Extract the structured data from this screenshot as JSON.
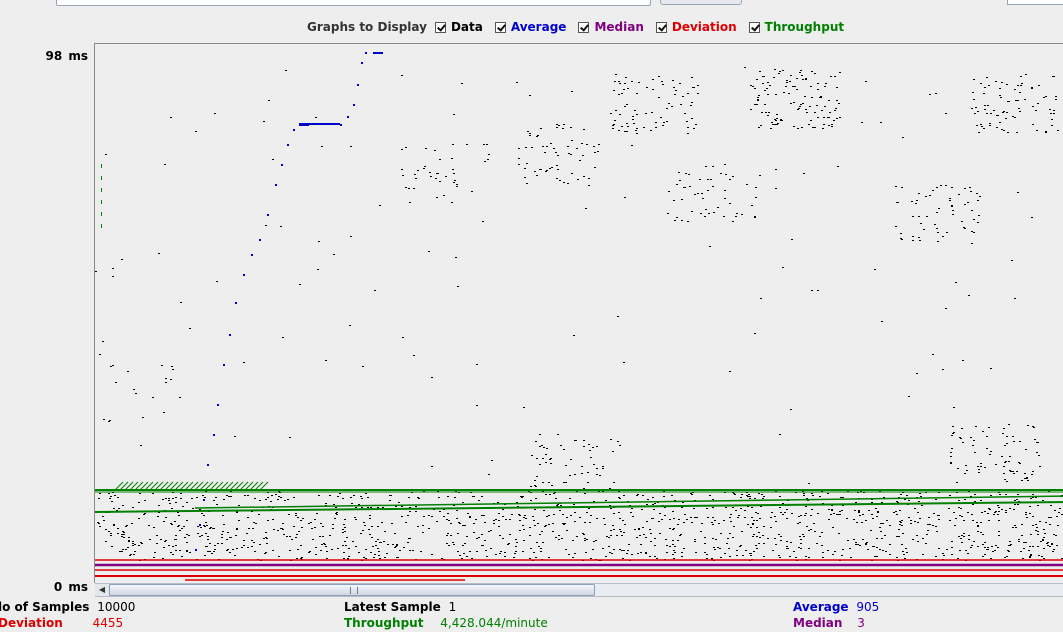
{
  "toggles": {
    "title": "Graphs to Display",
    "items": [
      {
        "label": "Data",
        "color": "#000000",
        "checked": true
      },
      {
        "label": "Average",
        "color": "#0000cc",
        "checked": true
      },
      {
        "label": "Median",
        "color": "#800080",
        "checked": true
      },
      {
        "label": "Deviation",
        "color": "#dd0000",
        "checked": true
      },
      {
        "label": "Throughput",
        "color": "#008000",
        "checked": true
      }
    ]
  },
  "axis": {
    "max_label": "98  ms",
    "min_label": "0  ms"
  },
  "stats": {
    "samples_label": "lo of Samples",
    "samples_value": "10000",
    "deviation_label": "Deviation",
    "deviation_value": "4455",
    "latest_label": "Latest Sample",
    "latest_value": "1",
    "throughput_label": "Throughput",
    "throughput_value": "4,428.044/minute",
    "average_label": "Average",
    "average_value": "905",
    "median_label": "Median",
    "median_value": "3"
  },
  "chart_data": {
    "type": "scatter",
    "ylim": [
      0,
      98
    ],
    "yunit": "ms",
    "series": [
      {
        "name": "Data",
        "color": "#000000"
      },
      {
        "name": "Average",
        "color": "#0000cc"
      },
      {
        "name": "Median",
        "color": "#800080"
      },
      {
        "name": "Deviation",
        "color": "#dd0000"
      },
      {
        "name": "Throughput",
        "color": "#008000"
      }
    ]
  }
}
